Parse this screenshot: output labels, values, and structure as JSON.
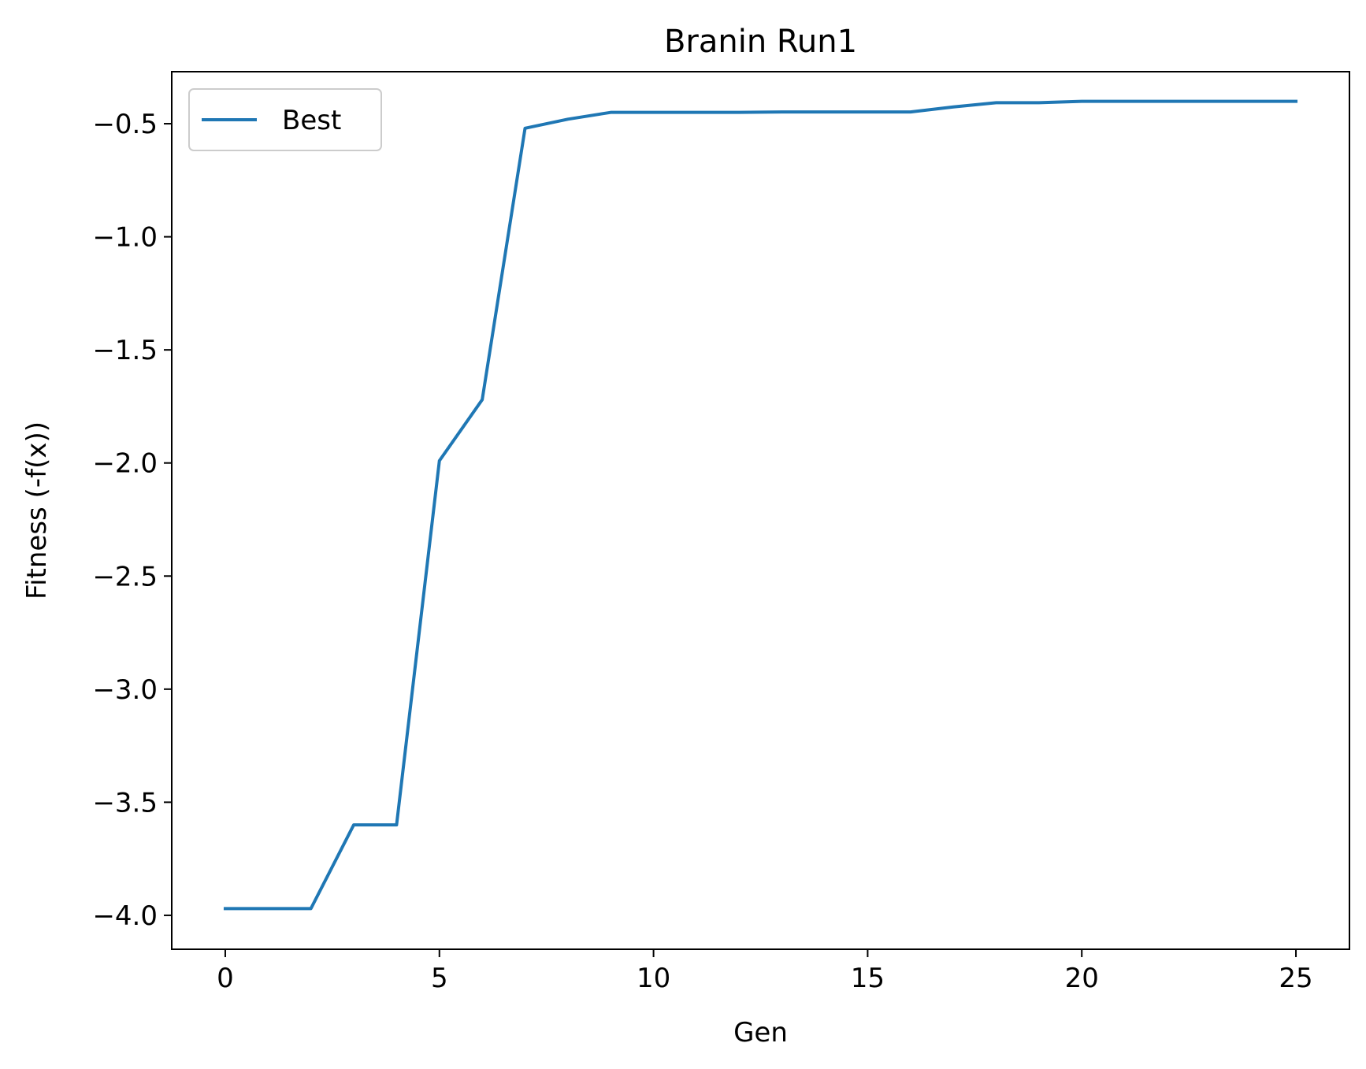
{
  "chart_data": {
    "type": "line",
    "title": "Branin Run1",
    "xlabel": "Gen",
    "ylabel": "Fitness (-f(x))",
    "xlim": [
      -1.25,
      26.25
    ],
    "ylim": [
      -4.15,
      -0.27
    ],
    "xticks": [
      0,
      5,
      10,
      15,
      20,
      25
    ],
    "xtick_labels": [
      "0",
      "5",
      "10",
      "15",
      "20",
      "25"
    ],
    "yticks": [
      -0.5,
      -1.0,
      -1.5,
      -2.0,
      -2.5,
      -3.0,
      -3.5,
      -4.0
    ],
    "ytick_labels": [
      "−0.5",
      "−1.0",
      "−1.5",
      "−2.0",
      "−2.5",
      "−3.0",
      "−3.5",
      "−4.0"
    ],
    "grid": false,
    "legend_position": "upper-left",
    "series": [
      {
        "name": "Best",
        "color": "#1f77b4",
        "x": [
          0,
          1,
          2,
          3,
          4,
          5,
          6,
          7,
          8,
          9,
          10,
          11,
          12,
          13,
          14,
          15,
          16,
          17,
          18,
          19,
          20,
          21,
          22,
          23,
          24,
          25
        ],
        "y": [
          -3.97,
          -3.97,
          -3.97,
          -3.6,
          -3.6,
          -1.99,
          -1.72,
          -0.52,
          -0.48,
          -0.45,
          -0.45,
          -0.45,
          -0.45,
          -0.448,
          -0.448,
          -0.448,
          -0.448,
          -0.426,
          -0.407,
          -0.407,
          -0.401,
          -0.401,
          -0.401,
          -0.401,
          -0.401,
          -0.401
        ]
      }
    ]
  }
}
